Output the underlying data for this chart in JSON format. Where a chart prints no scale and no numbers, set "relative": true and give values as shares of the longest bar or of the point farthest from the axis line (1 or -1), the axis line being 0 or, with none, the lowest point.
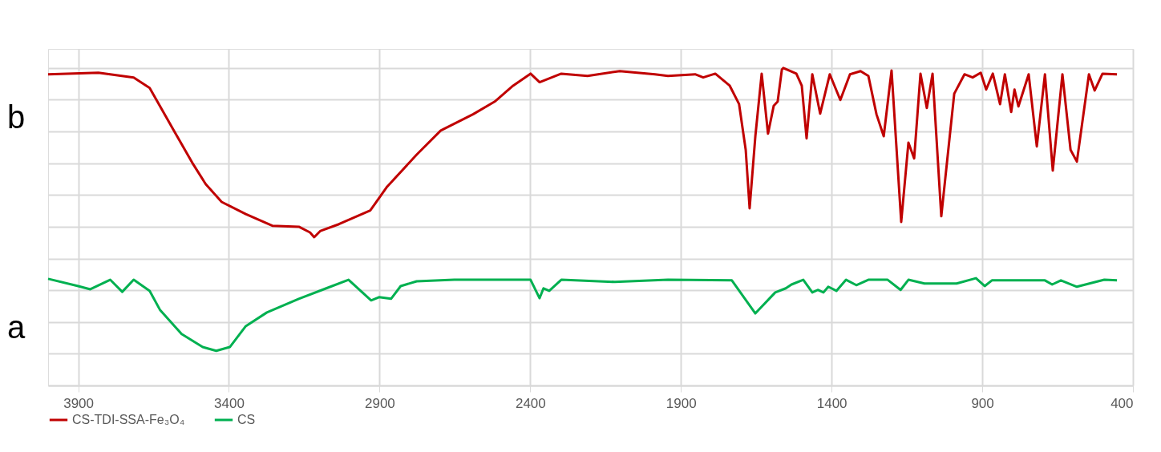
{
  "chart_data": {
    "type": "line",
    "relative": true,
    "xlim": [
      4000,
      400
    ],
    "xticks": [
      3900,
      3400,
      2900,
      2400,
      1900,
      1400,
      900,
      400
    ],
    "grid": true,
    "legend": "bottom",
    "line_style": "solid",
    "marker": "none",
    "annotations": [
      "b",
      "a"
    ],
    "series": [
      {
        "name": "CS-TDI-SSA-Fe₃O₄",
        "color": "#c00000",
        "x": [
          4000,
          3833,
          3716,
          3663,
          3583,
          3522,
          3477,
          3424,
          3344,
          3256,
          3168,
          3131,
          3117,
          3096,
          3035,
          2931,
          2875,
          2777,
          2697,
          2590,
          2518,
          2457,
          2399,
          2369,
          2297,
          2210,
          2103,
          1986,
          1943,
          1853,
          1826,
          1786,
          1738,
          1707,
          1685,
          1672,
          1653,
          1632,
          1611,
          1592,
          1579,
          1565,
          1560,
          1517,
          1499,
          1483,
          1464,
          1438,
          1406,
          1371,
          1339,
          1304,
          1278,
          1251,
          1227,
          1201,
          1169,
          1145,
          1126,
          1105,
          1084,
          1065,
          1036,
          993,
          959,
          932,
          905,
          887,
          865,
          841,
          825,
          804,
          793,
          780,
          746,
          719,
          692,
          666,
          634,
          607,
          586,
          546,
          527,
          501,
          453
        ],
        "values": [
          0.98,
          0.985,
          0.97,
          0.937,
          0.803,
          0.702,
          0.634,
          0.578,
          0.54,
          0.503,
          0.5,
          0.482,
          0.467,
          0.487,
          0.508,
          0.551,
          0.626,
          0.727,
          0.803,
          0.854,
          0.894,
          0.944,
          0.982,
          0.955,
          0.982,
          0.975,
          0.99,
          0.98,
          0.975,
          0.98,
          0.97,
          0.982,
          0.944,
          0.886,
          0.742,
          0.558,
          0.785,
          0.982,
          0.793,
          0.881,
          0.894,
          0.995,
          1.0,
          0.982,
          0.944,
          0.778,
          0.98,
          0.856,
          0.98,
          0.899,
          0.98,
          0.99,
          0.975,
          0.854,
          0.785,
          0.992,
          0.515,
          0.765,
          0.715,
          0.982,
          0.874,
          0.982,
          0.533,
          0.919,
          0.98,
          0.97,
          0.985,
          0.932,
          0.982,
          0.886,
          0.98,
          0.861,
          0.932,
          0.879,
          0.98,
          0.753,
          0.98,
          0.677,
          0.98,
          0.742,
          0.705,
          0.98,
          0.929,
          0.982,
          0.98
        ]
      },
      {
        "name": "CS",
        "color": "#00b050",
        "x": [
          4000,
          3900,
          3860,
          3794,
          3754,
          3716,
          3663,
          3628,
          3557,
          3487,
          3442,
          3397,
          3344,
          3274,
          3168,
          3077,
          3003,
          2928,
          2902,
          2862,
          2830,
          2777,
          2652,
          2399,
          2369,
          2356,
          2337,
          2297,
          2119,
          1943,
          1731,
          1653,
          1587,
          1552,
          1533,
          1494,
          1464,
          1446,
          1427,
          1411,
          1384,
          1352,
          1318,
          1278,
          1214,
          1171,
          1145,
          1092,
          985,
          921,
          892,
          868,
          692,
          668,
          639,
          586,
          495,
          453
        ],
        "values": [
          0.336,
          0.313,
          0.303,
          0.333,
          0.295,
          0.333,
          0.298,
          0.237,
          0.162,
          0.121,
          0.109,
          0.121,
          0.187,
          0.23,
          0.273,
          0.306,
          0.333,
          0.268,
          0.278,
          0.273,
          0.313,
          0.328,
          0.333,
          0.333,
          0.275,
          0.306,
          0.298,
          0.333,
          0.326,
          0.333,
          0.331,
          0.227,
          0.293,
          0.306,
          0.318,
          0.333,
          0.293,
          0.301,
          0.293,
          0.311,
          0.298,
          0.333,
          0.316,
          0.333,
          0.333,
          0.301,
          0.333,
          0.321,
          0.321,
          0.338,
          0.313,
          0.331,
          0.331,
          0.318,
          0.331,
          0.311,
          0.333,
          0.331
        ]
      }
    ]
  }
}
